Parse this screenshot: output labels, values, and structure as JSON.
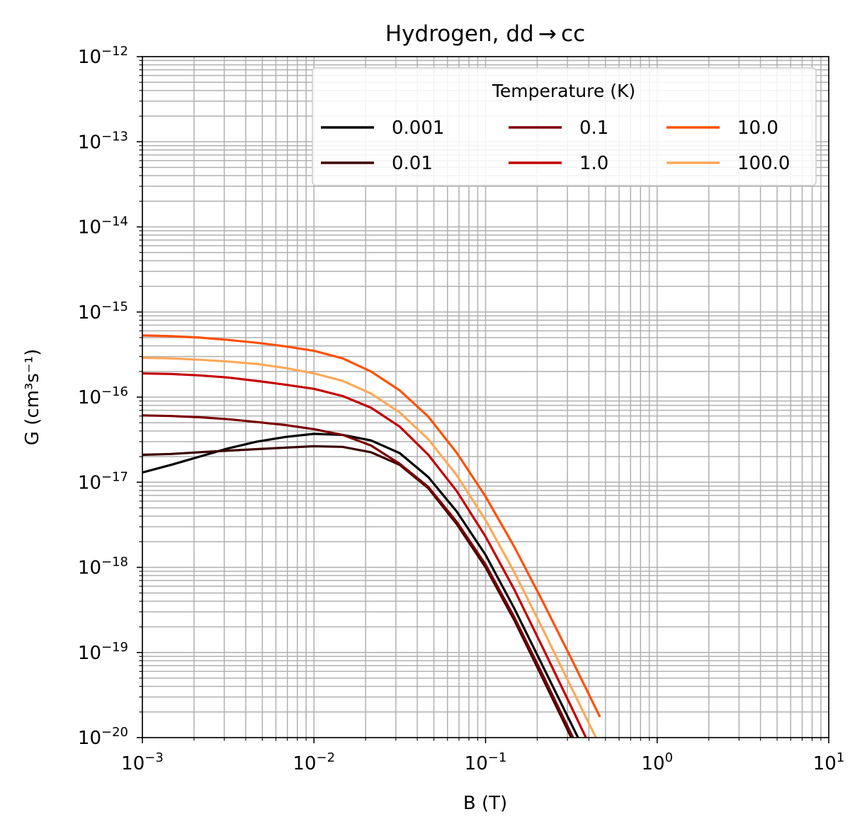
{
  "chart_data": {
    "type": "line",
    "title": "Hydrogen, dd → cc",
    "xlabel": "B (T)",
    "ylabel": "G (cm³s⁻¹)",
    "xscale": "log",
    "yscale": "log",
    "xlim": [
      0.001,
      10
    ],
    "ylim": [
      1e-20,
      1e-12
    ],
    "x_tick_labels": [
      {
        "base": "10",
        "exp": "−3"
      },
      {
        "base": "10",
        "exp": "−2"
      },
      {
        "base": "10",
        "exp": "−1"
      },
      {
        "base": "10",
        "exp": "0"
      },
      {
        "base": "10",
        "exp": "1"
      }
    ],
    "y_tick_labels": [
      {
        "base": "10",
        "exp": "−20"
      },
      {
        "base": "10",
        "exp": "−19"
      },
      {
        "base": "10",
        "exp": "−18"
      },
      {
        "base": "10",
        "exp": "−17"
      },
      {
        "base": "10",
        "exp": "−16"
      },
      {
        "base": "10",
        "exp": "−15"
      },
      {
        "base": "10",
        "exp": "−14"
      },
      {
        "base": "10",
        "exp": "−13"
      },
      {
        "base": "10",
        "exp": "−12"
      }
    ],
    "grid": true,
    "legend": {
      "title": "Temperature (K)",
      "position": "top-right",
      "columns": 3
    },
    "x": [
      0.001,
      0.00147,
      0.00215,
      0.00316,
      0.00464,
      0.00681,
      0.01,
      0.0147,
      0.0215,
      0.0316,
      0.0464,
      0.0681,
      0.1,
      0.147,
      0.215,
      0.316,
      0.464
    ],
    "series": [
      {
        "name": "0.001",
        "color": "#000000",
        "values": [
          1.3e-17,
          1.6e-17,
          2e-17,
          2.5e-17,
          3e-17,
          3.4e-17,
          3.7e-17,
          3.6e-17,
          3.1e-17,
          2.2e-17,
          1.15e-17,
          4.5e-18,
          1.4e-18,
          3.3e-19,
          7e-20,
          1.45e-20,
          3e-21
        ]
      },
      {
        "name": "0.01",
        "color": "#3d0000",
        "values": [
          2.1e-17,
          2.15e-17,
          2.25e-17,
          2.35e-17,
          2.45e-17,
          2.55e-17,
          2.65e-17,
          2.6e-17,
          2.25e-17,
          1.6e-17,
          8.5e-18,
          3.2e-18,
          1e-18,
          2.4e-19,
          5e-20,
          1e-20,
          2e-21
        ]
      },
      {
        "name": "0.1",
        "color": "#7a0000",
        "values": [
          6.1e-17,
          6e-17,
          5.8e-17,
          5.5e-17,
          5.1e-17,
          4.7e-17,
          4.2e-17,
          3.6e-17,
          2.7e-17,
          1.65e-17,
          8.8e-18,
          3.4e-18,
          1.08e-18,
          2.6e-19,
          5.5e-20,
          1.1e-20,
          2.2e-21
        ]
      },
      {
        "name": "1.0",
        "color": "#c40000",
        "values": [
          1.9e-16,
          1.87e-16,
          1.8e-16,
          1.7e-16,
          1.55e-16,
          1.4e-16,
          1.25e-16,
          1.03e-16,
          7.5e-17,
          4.5e-17,
          2.1e-17,
          7.8e-18,
          2.3e-18,
          5.5e-19,
          1.15e-19,
          2.3e-20,
          4.5e-21
        ]
      },
      {
        "name": "10.0",
        "color": "#ff5000",
        "values": [
          5.3e-16,
          5.2e-16,
          5e-16,
          4.7e-16,
          4.35e-16,
          3.95e-16,
          3.5e-16,
          2.85e-16,
          2e-16,
          1.2e-16,
          5.9e-17,
          2.2e-17,
          6.8e-18,
          1.75e-18,
          4e-19,
          8.5e-20,
          1.75e-20
        ]
      },
      {
        "name": "100.0",
        "color": "#ffa858",
        "values": [
          2.9e-16,
          2.85e-16,
          2.75e-16,
          2.62e-16,
          2.45e-16,
          2.2e-16,
          1.9e-16,
          1.55e-16,
          1.1e-16,
          6.6e-17,
          3.2e-17,
          1.2e-17,
          3.6e-18,
          8.8e-19,
          1.9e-19,
          3.9e-20,
          8e-21
        ]
      }
    ]
  }
}
